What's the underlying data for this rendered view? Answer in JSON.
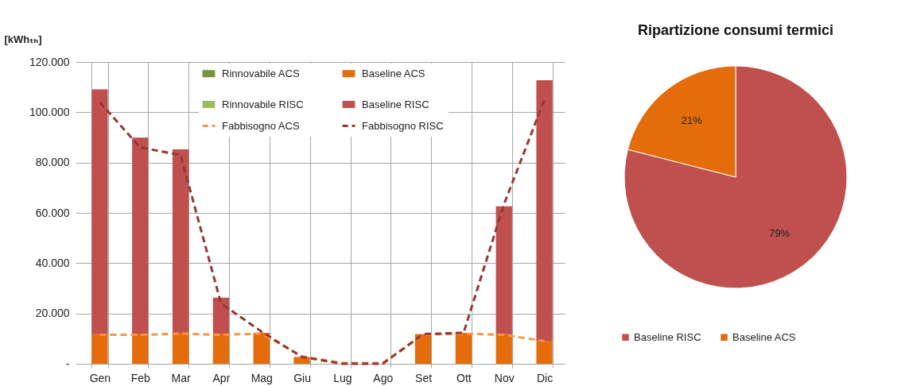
{
  "chart_data": [
    {
      "type": "bar",
      "stacked": true,
      "ylabel": "[kWhₜₕ]",
      "categories": [
        "Gen",
        "Feb",
        "Mar",
        "Apr",
        "Mag",
        "Giu",
        "Lug",
        "Ago",
        "Set",
        "Ott",
        "Nov",
        "Dic"
      ],
      "series": [
        {
          "name": "Rinnovabile ACS",
          "color": "#77933c",
          "values": [
            0,
            0,
            0,
            0,
            0,
            0,
            0,
            0,
            0,
            0,
            0,
            0
          ]
        },
        {
          "name": "Rinnovabile RISC",
          "color": "#9bbb59",
          "values": [
            0,
            0,
            0,
            0,
            0,
            0,
            0,
            0,
            0,
            0,
            0,
            0
          ]
        },
        {
          "name": "Fabbisogno ACS",
          "type": "line",
          "line_style": "dashed",
          "color": "#f79646",
          "values": [
            11500,
            11500,
            12000,
            11500,
            12000,
            3000,
            300,
            300,
            11500,
            12000,
            11500,
            9000
          ]
        },
        {
          "name": "Baseline ACS",
          "color": "#e46c0a",
          "values": [
            11800,
            11800,
            12300,
            11800,
            12300,
            2700,
            0,
            0,
            11800,
            12300,
            11800,
            9100
          ]
        },
        {
          "name": "Baseline RISC",
          "color": "#c0504d",
          "values": [
            97300,
            78100,
            73000,
            14500,
            0,
            0,
            0,
            0,
            0,
            0,
            50800,
            103600
          ]
        },
        {
          "name": "Fabbisogno RISC",
          "type": "line",
          "line_style": "dashed",
          "color": "#953735",
          "values": [
            104000,
            86000,
            83000,
            24000,
            12800,
            2700,
            0,
            0,
            11800,
            12300,
            63400,
            105000
          ]
        }
      ],
      "ylim": [
        0,
        120000
      ],
      "yticks": [
        {
          "value": 0,
          "label": "-"
        },
        {
          "value": 20000,
          "label": "20.000"
        },
        {
          "value": 40000,
          "label": "40.000"
        },
        {
          "value": 60000,
          "label": "60.000"
        },
        {
          "value": 80000,
          "label": "80.000"
        },
        {
          "value": 100000,
          "label": "100.000"
        },
        {
          "value": 120000,
          "label": "120.000"
        }
      ],
      "grid": true,
      "legend": "top",
      "marker": "none"
    },
    {
      "type": "pie",
      "title": "Ripartizione consumi termici",
      "categories": [
        "Baseline RISC",
        "Baseline ACS"
      ],
      "values": [
        79,
        21
      ],
      "colors": [
        "#c0504d",
        "#e46c0a"
      ],
      "value_labels": [
        "79%",
        "21%"
      ],
      "legend": "bottom"
    }
  ]
}
